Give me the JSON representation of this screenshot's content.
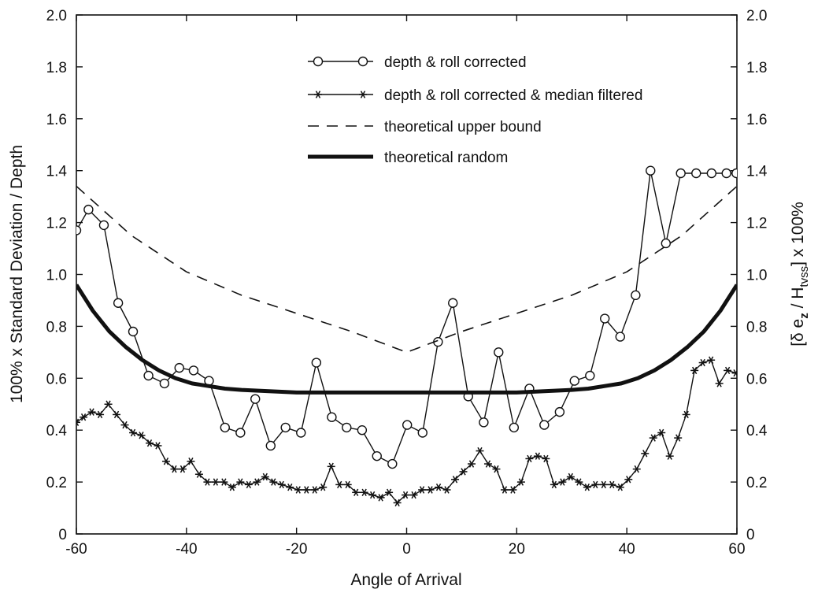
{
  "chart_data": {
    "type": "line",
    "xlabel": "Angle of Arrival",
    "ylabel": "100% x Standard Deviation / Depth",
    "ylabel_right_parts": {
      "open": "[δ e",
      "sub1": "z",
      "mid": " / H",
      "sub2": "tvss",
      "close": "] x 100%"
    },
    "xlim": [
      -60,
      60
    ],
    "ylim": [
      0,
      2.0
    ],
    "x_ticks": [
      "-60",
      "-40",
      "-20",
      "0",
      "20",
      "40",
      "60"
    ],
    "y_ticks": [
      "0",
      "0.2",
      "0.4",
      "0.6",
      "0.8",
      "1.0",
      "1.2",
      "1.4",
      "1.6",
      "1.8",
      "2.0"
    ],
    "grid": false,
    "legend_position": "top-center",
    "series": [
      {
        "name": "depth & roll corrected",
        "style": "line-circle",
        "color": "#111111",
        "x": [
          -60,
          -57.8,
          -55.0,
          -52.4,
          -49.7,
          -46.9,
          -44.0,
          -41.3,
          -38.7,
          -35.9,
          -33.0,
          -30.2,
          -27.5,
          -24.7,
          -22.0,
          -19.2,
          -16.4,
          -13.6,
          -10.9,
          -8.1,
          -5.4,
          -2.6,
          0.1,
          2.9,
          5.7,
          8.4,
          11.2,
          14.0,
          16.7,
          19.5,
          22.3,
          25.0,
          27.8,
          30.5,
          33.3,
          36.0,
          38.8,
          41.6,
          44.3,
          47.1,
          49.8,
          52.6,
          55.4,
          58.1,
          59.9
        ],
        "y": [
          1.17,
          1.25,
          1.19,
          0.89,
          0.78,
          0.61,
          0.58,
          0.64,
          0.63,
          0.59,
          0.41,
          0.39,
          0.52,
          0.34,
          0.41,
          0.39,
          0.66,
          0.45,
          0.41,
          0.4,
          0.3,
          0.27,
          0.42,
          0.39,
          0.74,
          0.89,
          0.53,
          0.43,
          0.7,
          0.41,
          0.56,
          0.42,
          0.47,
          0.59,
          0.61,
          0.83,
          0.76,
          0.92,
          1.4,
          1.12,
          1.39,
          1.39,
          1.39,
          1.39,
          1.39
        ]
      },
      {
        "name": "depth & roll corrected & median filtered",
        "style": "line-star",
        "color": "#111111",
        "x": [
          -60,
          -58.7,
          -57.2,
          -55.7,
          -54.2,
          -52.7,
          -51.2,
          -49.7,
          -48.2,
          -46.7,
          -45.2,
          -43.7,
          -42.2,
          -40.7,
          -39.2,
          -37.7,
          -36.2,
          -34.7,
          -33.2,
          -31.7,
          -30.2,
          -28.7,
          -27.2,
          -25.7,
          -24.2,
          -22.7,
          -21.2,
          -19.7,
          -18.2,
          -16.7,
          -15.2,
          -13.7,
          -12.2,
          -10.7,
          -9.2,
          -7.7,
          -6.2,
          -4.7,
          -3.2,
          -1.7,
          -0.2,
          1.3,
          2.8,
          4.3,
          5.8,
          7.3,
          8.8,
          10.3,
          11.8,
          13.3,
          14.8,
          16.3,
          17.8,
          19.3,
          20.8,
          22.3,
          23.8,
          25.3,
          26.8,
          28.3,
          29.8,
          31.3,
          32.8,
          34.3,
          35.8,
          37.3,
          38.8,
          40.3,
          41.8,
          43.3,
          44.8,
          46.3,
          47.8,
          49.3,
          50.8,
          52.3,
          53.8,
          55.3,
          56.8,
          58.3,
          59.8
        ],
        "y": [
          0.43,
          0.45,
          0.47,
          0.46,
          0.5,
          0.46,
          0.42,
          0.39,
          0.38,
          0.35,
          0.34,
          0.28,
          0.25,
          0.25,
          0.28,
          0.23,
          0.2,
          0.2,
          0.2,
          0.18,
          0.2,
          0.19,
          0.2,
          0.22,
          0.2,
          0.19,
          0.18,
          0.17,
          0.17,
          0.17,
          0.18,
          0.26,
          0.19,
          0.19,
          0.16,
          0.16,
          0.15,
          0.14,
          0.16,
          0.12,
          0.15,
          0.15,
          0.17,
          0.17,
          0.18,
          0.17,
          0.21,
          0.24,
          0.27,
          0.32,
          0.27,
          0.25,
          0.17,
          0.17,
          0.2,
          0.29,
          0.3,
          0.29,
          0.19,
          0.2,
          0.22,
          0.2,
          0.18,
          0.19,
          0.19,
          0.19,
          0.18,
          0.21,
          0.25,
          0.31,
          0.37,
          0.39,
          0.3,
          0.37,
          0.46,
          0.63,
          0.66,
          0.67,
          0.58,
          0.63,
          0.62
        ]
      },
      {
        "name": "theoretical upper bound",
        "style": "dashed",
        "color": "#111111",
        "x": [
          -60,
          -50,
          -40,
          -30,
          -20,
          -10,
          0,
          10,
          20,
          30,
          40,
          50,
          60
        ],
        "y": [
          1.34,
          1.15,
          1.01,
          0.92,
          0.85,
          0.78,
          0.7,
          0.78,
          0.85,
          0.92,
          1.01,
          1.15,
          1.34
        ]
      },
      {
        "name": "theoretical random",
        "style": "thick",
        "color": "#111111",
        "x": [
          -60,
          -57,
          -54,
          -51,
          -48,
          -45,
          -42,
          -39,
          -36,
          -33,
          -30,
          -25,
          -20,
          -10,
          0,
          10,
          20,
          25,
          30,
          33,
          36,
          39,
          42,
          45,
          48,
          51,
          54,
          57,
          60
        ],
        "y": [
          0.96,
          0.86,
          0.78,
          0.72,
          0.67,
          0.63,
          0.6,
          0.58,
          0.57,
          0.56,
          0.555,
          0.55,
          0.545,
          0.545,
          0.545,
          0.545,
          0.545,
          0.55,
          0.555,
          0.56,
          0.57,
          0.58,
          0.6,
          0.63,
          0.67,
          0.72,
          0.78,
          0.86,
          0.96
        ]
      }
    ]
  }
}
